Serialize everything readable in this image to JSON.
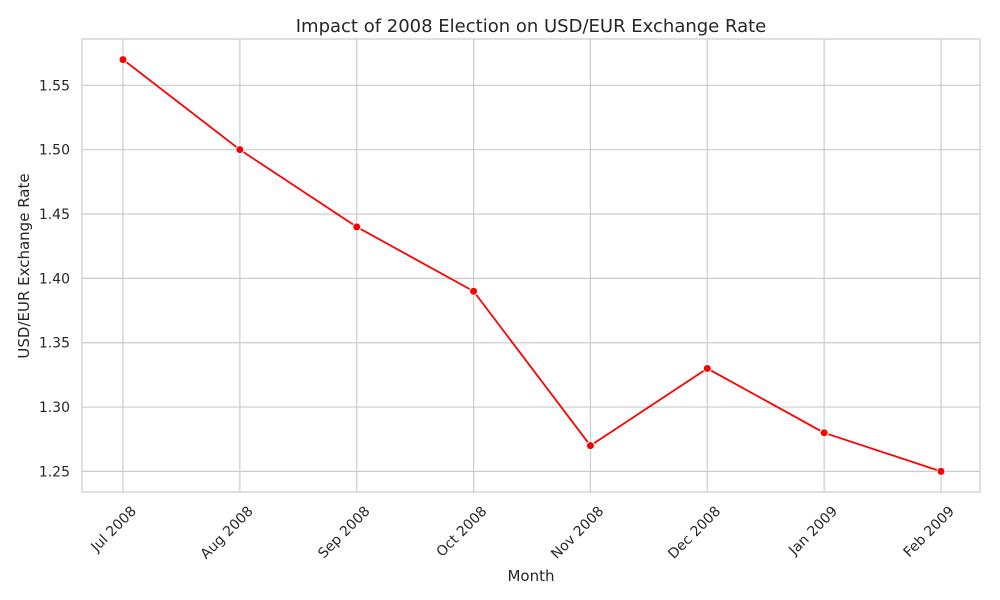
{
  "chart_data": {
    "type": "line",
    "title": "Impact of 2008 Election on USD/EUR Exchange Rate",
    "xlabel": "Month",
    "ylabel": "USD/EUR Exchange Rate",
    "categories": [
      "Jul 2008",
      "Aug 2008",
      "Sep 2008",
      "Oct 2008",
      "Nov 2008",
      "Dec 2008",
      "Jan 2009",
      "Feb 2009"
    ],
    "series": [
      {
        "values": [
          1.57,
          1.5,
          1.44,
          1.39,
          1.27,
          1.33,
          1.28,
          1.25
        ],
        "color": "#ff0000"
      }
    ],
    "yticks": [
      "1.25",
      "1.30",
      "1.35",
      "1.40",
      "1.45",
      "1.50",
      "1.55"
    ],
    "ylim": [
      1.234,
      1.586
    ],
    "grid": true,
    "legend": "none"
  }
}
